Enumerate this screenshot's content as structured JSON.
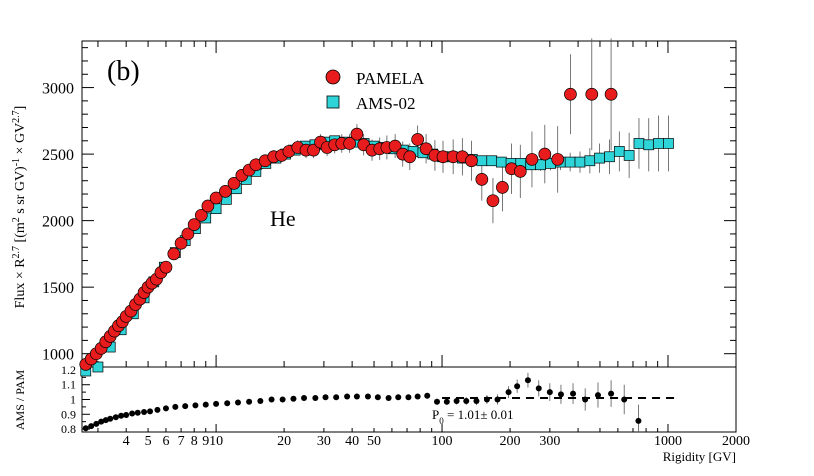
{
  "chart_data": [
    {
      "type": "scatter",
      "panel_label": "(b)",
      "annotation": "He",
      "ylabel_parts": {
        "p1": "Flux × R",
        "p1_sup": "2.7",
        "p2": " [(m",
        "p2_sup": "2",
        "p3": " s sr GV)",
        "p3_sup": "-1",
        "p4": " × GV",
        "p4_sup": "2.7",
        "p5": "]"
      },
      "xscale": "log",
      "xlim": [
        2.55,
        2000
      ],
      "ylim": [
        900,
        3350
      ],
      "yticks": [
        "1000",
        "1500",
        "2000",
        "2500",
        "3000"
      ],
      "legend": {
        "position": "top-center",
        "entries": [
          "PAMELA",
          "AMS-02"
        ]
      },
      "series": [
        {
          "name": "PAMELA",
          "marker": "circle",
          "color": "#e81c1c",
          "x": [
            2.65,
            2.8,
            2.95,
            3.1,
            3.25,
            3.4,
            3.55,
            3.7,
            3.85,
            4.0,
            4.2,
            4.4,
            4.6,
            4.8,
            5.0,
            5.2,
            5.45,
            5.7,
            6.0,
            6.5,
            7.0,
            7.5,
            8.0,
            8.6,
            9.2,
            10.0,
            11.0,
            12.0,
            13.0,
            14.0,
            15.0,
            16.5,
            18.0,
            19.5,
            21.0,
            23.0,
            25.0,
            27.0,
            29.0,
            31.0,
            33.5,
            36.0,
            39.0,
            42.0,
            45.0,
            49.0,
            53.0,
            57.0,
            62.0,
            67.0,
            72.0,
            78.0,
            85.0,
            93.0,
            101.0,
            112.0,
            123.0,
            135.0,
            150.0,
            168.0,
            185.0,
            203.0,
            222.0,
            250.0,
            285.0,
            325.0,
            370.0,
            460.0,
            560.0
          ],
          "y": [
            920,
            960,
            1000,
            1040,
            1090,
            1130,
            1170,
            1210,
            1240,
            1280,
            1320,
            1370,
            1410,
            1460,
            1500,
            1530,
            1560,
            1610,
            1650,
            1750,
            1830,
            1900,
            1970,
            2040,
            2110,
            2170,
            2220,
            2280,
            2340,
            2380,
            2420,
            2450,
            2480,
            2490,
            2520,
            2550,
            2530,
            2530,
            2590,
            2550,
            2570,
            2580,
            2580,
            2650,
            2570,
            2530,
            2540,
            2550,
            2560,
            2500,
            2480,
            2610,
            2540,
            2490,
            2480,
            2480,
            2480,
            2450,
            2310,
            2150,
            2250,
            2390,
            2370,
            2460,
            2500,
            2460,
            2950,
            2950,
            2950
          ],
          "err": [
            0,
            0,
            0,
            0,
            0,
            0,
            0,
            0,
            0,
            0,
            0,
            0,
            0,
            0,
            0,
            0,
            0,
            0,
            0,
            0,
            0,
            0,
            0,
            0,
            0,
            0,
            0,
            0,
            0,
            0,
            40,
            45,
            50,
            50,
            55,
            55,
            60,
            60,
            60,
            65,
            65,
            70,
            70,
            75,
            80,
            80,
            85,
            90,
            90,
            95,
            100,
            105,
            110,
            115,
            120,
            130,
            140,
            150,
            160,
            170,
            180,
            190,
            200,
            210,
            220,
            250,
            300,
            420,
            420
          ]
        },
        {
          "name": "AMS-02",
          "marker": "square",
          "color": "#2fd4d8",
          "x": [
            2.65,
            3.0,
            3.4,
            3.8,
            4.3,
            4.8,
            5.3,
            5.9,
            6.6,
            7.3,
            8.1,
            9.0,
            10.0,
            11.1,
            12.3,
            13.6,
            15.0,
            16.6,
            18.4,
            20.3,
            22.4,
            24.8,
            27.4,
            30.3,
            33.5,
            37.0,
            40.9,
            45.2,
            50.0,
            55.2,
            61.0,
            67.4,
            74.5,
            82.3,
            91.0,
            100.5,
            111.0,
            123.0,
            136.0,
            150.0,
            166.0,
            183.0,
            202.0,
            223.0,
            247.0,
            273.0,
            302.0,
            334.0,
            369.0,
            408.0,
            451.0,
            498.0,
            551.0,
            609.0,
            673.0,
            744.0,
            822.0,
            909.0,
            1005.0
          ],
          "y": [
            870,
            900,
            1050,
            1180,
            1300,
            1420,
            1540,
            1650,
            1760,
            1850,
            1940,
            2020,
            2090,
            2160,
            2240,
            2310,
            2370,
            2430,
            2470,
            2500,
            2530,
            2560,
            2570,
            2590,
            2600,
            2590,
            2590,
            2580,
            2560,
            2550,
            2540,
            2530,
            2520,
            2510,
            2500,
            2480,
            2480,
            2470,
            2460,
            2450,
            2450,
            2440,
            2430,
            2430,
            2420,
            2420,
            2430,
            2440,
            2440,
            2440,
            2450,
            2470,
            2480,
            2520,
            2490,
            2580,
            2570,
            2580,
            2580
          ],
          "err": [
            0,
            0,
            0,
            0,
            0,
            0,
            0,
            0,
            0,
            0,
            0,
            0,
            0,
            0,
            0,
            0,
            10,
            10,
            10,
            10,
            10,
            10,
            10,
            10,
            10,
            10,
            10,
            10,
            10,
            10,
            10,
            12,
            12,
            14,
            14,
            16,
            18,
            20,
            22,
            24,
            26,
            28,
            32,
            36,
            40,
            46,
            52,
            60,
            70,
            80,
            95,
            110,
            130,
            150,
            170,
            190,
            200,
            210,
            210
          ]
        }
      ]
    },
    {
      "type": "scatter",
      "ylabel": "AMS / PAM",
      "xlabel": "Rigidity [GV]",
      "xscale": "log",
      "xlim": [
        2.55,
        2000
      ],
      "ylim": [
        0.78,
        1.22
      ],
      "yticks": [
        "0.8",
        "0.9",
        "1",
        "1.1",
        "1.2"
      ],
      "xticks": [
        "4",
        "5",
        "6",
        "7",
        "8",
        "9",
        "10",
        "20",
        "30",
        "40",
        "50",
        "100",
        "200",
        "300",
        "1000",
        "2000"
      ],
      "fit": {
        "label": "P0 = 1.01± 0.01",
        "value": 1.01,
        "x_range": [
          100,
          1130
        ],
        "style": "dashed"
      },
      "fit_label_parts": {
        "p": "P",
        "sub": "0",
        "rest": " = 1.01± 0.01"
      },
      "series": [
        {
          "name": "ratio",
          "marker": "circle",
          "color": "#000000",
          "x": [
            2.65,
            2.8,
            2.95,
            3.1,
            3.25,
            3.4,
            3.6,
            3.8,
            4.0,
            4.25,
            4.5,
            4.8,
            5.1,
            5.5,
            6.0,
            6.6,
            7.3,
            8.1,
            9.0,
            10.0,
            11.2,
            12.5,
            14.0,
            15.7,
            17.6,
            19.7,
            22.0,
            24.5,
            27.5,
            30.5,
            34.0,
            38.0,
            42.0,
            47.0,
            52.0,
            58.0,
            64.0,
            71.0,
            78.0,
            86.0,
            95.0,
            105.0,
            116.0,
            128.0,
            142.0,
            158.0,
            176.0,
            197.0,
            215.0,
            240.0,
            268.0,
            300.0,
            336.0,
            380.0,
            430.0,
            490.0,
            560.0,
            640.0,
            740.0
          ],
          "y": [
            0.805,
            0.82,
            0.835,
            0.85,
            0.86,
            0.87,
            0.88,
            0.89,
            0.895,
            0.905,
            0.91,
            0.915,
            0.92,
            0.93,
            0.94,
            0.95,
            0.955,
            0.96,
            0.965,
            0.97,
            0.975,
            0.98,
            0.985,
            0.99,
            1.0,
            1.0,
            1.005,
            1.01,
            1.01,
            1.015,
            1.015,
            1.02,
            1.02,
            1.02,
            1.015,
            1.01,
            1.015,
            1.015,
            1.02,
            1.025,
            0.985,
            0.985,
            0.99,
            0.99,
            0.99,
            1.0,
            1.0,
            1.05,
            1.09,
            1.13,
            1.075,
            1.05,
            1.035,
            1.04,
            1.0,
            1.03,
            1.04,
            1.0,
            0.855
          ],
          "err": [
            0,
            0,
            0,
            0,
            0,
            0,
            0,
            0,
            0,
            0,
            0,
            0,
            0,
            0,
            0,
            0,
            0,
            0,
            0,
            0,
            0,
            0,
            0,
            0,
            0,
            0,
            0,
            0,
            0,
            0,
            0,
            0,
            0,
            0,
            0.012,
            0.012,
            0.014,
            0.016,
            0.018,
            0.02,
            0.02,
            0.022,
            0.024,
            0.026,
            0.028,
            0.03,
            0.035,
            0.04,
            0.045,
            0.05,
            0.055,
            0.06,
            0.065,
            0.07,
            0.075,
            0.085,
            0.09,
            0.1,
            0.11
          ]
        }
      ]
    }
  ]
}
